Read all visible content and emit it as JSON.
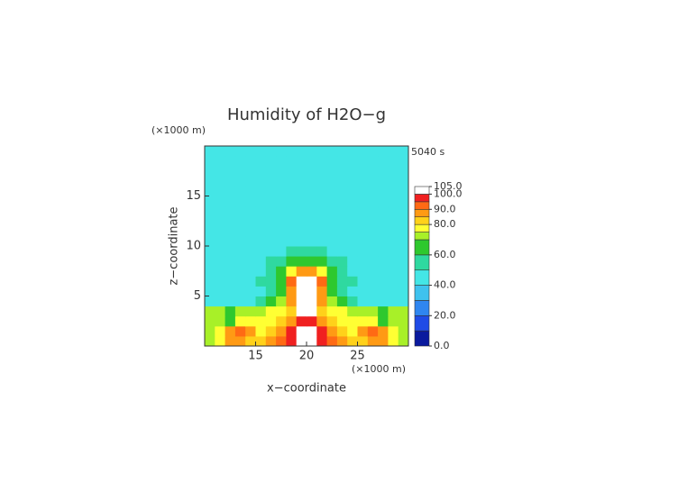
{
  "chart_data": {
    "type": "heatmap",
    "title": "Humidity of H2O−g",
    "time_label": "5040 s",
    "y_unit": "(×1000 m)",
    "x_unit": "(×1000 m)",
    "xlabel": "x−coordinate",
    "ylabel": "z−coordinate",
    "xlim": [
      10,
      30
    ],
    "xticks": [
      15,
      20,
      25
    ],
    "ylim": [
      0,
      20
    ],
    "yticks": [
      5,
      10,
      15
    ],
    "x": [
      10.5,
      11.5,
      12.5,
      13.5,
      14.5,
      15.5,
      16.5,
      17.5,
      18.5,
      19.5,
      20.5,
      21.5,
      22.5,
      23.5,
      24.5,
      25.5,
      26.5,
      27.5,
      28.5,
      29.5
    ],
    "y": [
      0.5,
      1.5,
      2.5,
      3.5,
      4.5,
      5.5,
      6.5,
      7.5,
      8.5,
      9.5,
      10.5,
      11.5,
      12.5,
      13.5,
      14.5,
      15.5,
      16.5,
      17.5,
      18.5,
      19.5
    ],
    "values": [
      [
        72,
        75,
        85,
        88,
        82,
        80,
        85,
        90,
        95,
        100,
        100,
        95,
        90,
        85,
        80,
        82,
        88,
        85,
        75,
        72
      ],
      [
        72,
        78,
        88,
        92,
        85,
        78,
        80,
        88,
        95,
        100,
        100,
        95,
        88,
        80,
        78,
        85,
        92,
        88,
        78,
        72
      ],
      [
        72,
        72,
        65,
        75,
        75,
        75,
        78,
        82,
        88,
        98,
        98,
        88,
        82,
        78,
        75,
        75,
        75,
        65,
        72,
        72
      ],
      [
        70,
        70,
        65,
        72,
        72,
        72,
        75,
        78,
        82,
        100,
        100,
        82,
        78,
        75,
        72,
        72,
        72,
        65,
        70,
        70
      ],
      [
        45,
        45,
        45,
        45,
        45,
        50,
        62,
        72,
        85,
        100,
        100,
        85,
        72,
        62,
        50,
        45,
        45,
        45,
        45,
        45
      ],
      [
        45,
        45,
        45,
        45,
        45,
        48,
        55,
        65,
        85,
        102,
        102,
        85,
        65,
        55,
        48,
        45,
        45,
        45,
        45,
        45
      ],
      [
        45,
        45,
        45,
        45,
        45,
        50,
        58,
        68,
        90,
        103,
        103,
        90,
        68,
        58,
        50,
        45,
        45,
        45,
        45,
        45
      ],
      [
        45,
        45,
        45,
        45,
        45,
        48,
        55,
        65,
        75,
        85,
        85,
        75,
        65,
        55,
        48,
        45,
        45,
        45,
        45,
        45
      ],
      [
        45,
        45,
        45,
        45,
        45,
        45,
        52,
        58,
        62,
        65,
        65,
        62,
        58,
        52,
        45,
        45,
        45,
        45,
        45,
        45
      ],
      [
        45,
        45,
        45,
        45,
        45,
        45,
        45,
        48,
        50,
        50,
        50,
        50,
        48,
        45,
        45,
        45,
        45,
        45,
        45,
        45
      ],
      [
        45,
        45,
        45,
        45,
        45,
        45,
        45,
        45,
        45,
        45,
        45,
        45,
        45,
        45,
        45,
        45,
        45,
        45,
        45,
        45
      ],
      [
        45,
        45,
        45,
        45,
        45,
        45,
        45,
        45,
        45,
        45,
        45,
        45,
        45,
        45,
        45,
        45,
        45,
        45,
        45,
        45
      ],
      [
        45,
        45,
        45,
        45,
        45,
        45,
        45,
        45,
        45,
        45,
        45,
        45,
        45,
        45,
        45,
        45,
        45,
        45,
        45,
        45
      ],
      [
        45,
        45,
        45,
        45,
        45,
        45,
        45,
        45,
        45,
        45,
        45,
        45,
        45,
        45,
        45,
        45,
        45,
        45,
        45,
        45
      ],
      [
        45,
        45,
        45,
        45,
        45,
        45,
        45,
        45,
        45,
        45,
        45,
        45,
        45,
        45,
        45,
        45,
        45,
        45,
        45,
        45
      ],
      [
        45,
        45,
        45,
        45,
        45,
        45,
        45,
        45,
        45,
        45,
        45,
        45,
        45,
        45,
        45,
        45,
        45,
        45,
        45,
        45
      ],
      [
        45,
        45,
        45,
        45,
        45,
        45,
        45,
        45,
        45,
        45,
        45,
        45,
        45,
        45,
        45,
        45,
        45,
        45,
        45,
        45
      ],
      [
        45,
        45,
        45,
        45,
        45,
        45,
        45,
        45,
        45,
        45,
        45,
        45,
        45,
        45,
        45,
        45,
        45,
        45,
        45,
        45
      ],
      [
        45,
        45,
        45,
        45,
        45,
        45,
        45,
        45,
        45,
        45,
        45,
        45,
        45,
        45,
        45,
        45,
        45,
        45,
        45,
        45
      ],
      [
        45,
        45,
        45,
        45,
        45,
        45,
        45,
        45,
        45,
        45,
        45,
        45,
        45,
        45,
        45,
        45,
        45,
        45,
        45,
        45
      ]
    ],
    "levels": [
      0,
      10,
      20,
      30,
      40,
      50,
      60,
      70,
      75,
      80,
      85,
      90,
      95,
      100,
      105
    ],
    "level_colors": [
      "#0a1a9e",
      "#1f4be6",
      "#2f86f0",
      "#3fc2ee",
      "#44e6e6",
      "#2fd9a0",
      "#2ec82e",
      "#a8f028",
      "#ffff33",
      "#ffd11a",
      "#ff9a14",
      "#ff6a14",
      "#f02020",
      "#ffffff"
    ],
    "cbar_ticks": [
      {
        "value": 0,
        "label": "0.0"
      },
      {
        "value": 20,
        "label": "20.0"
      },
      {
        "value": 40,
        "label": "40.0"
      },
      {
        "value": 60,
        "label": "60.0"
      },
      {
        "value": 80,
        "label": "80.0"
      },
      {
        "value": 90,
        "label": "90.0"
      },
      {
        "value": 100,
        "label": "100.0"
      },
      {
        "value": 105,
        "label": "105.0"
      }
    ]
  }
}
